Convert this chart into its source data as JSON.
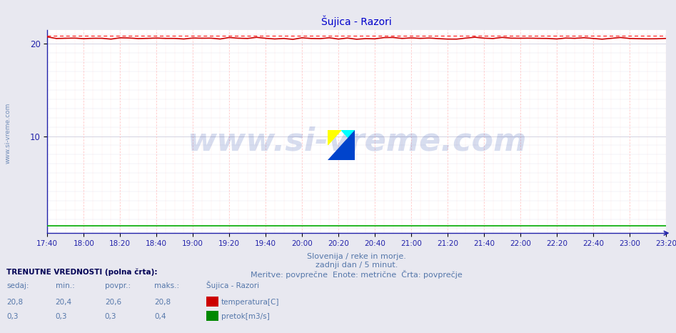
{
  "title": "Šujica - Razori",
  "title_color": "#0000cc",
  "title_fontsize": 10,
  "background_color": "#e8e8f0",
  "plot_bg_color": "#ffffff",
  "xlabel_line1": "Slovenija / reke in morje.",
  "xlabel_line2": "zadnji dan / 5 minut.",
  "xlabel_line3": "Meritve: povprečne  Enote: metrične  Črta: povprečje",
  "xlabel_color": "#5577aa",
  "xlabel_fontsize": 8,
  "xtick_labels": [
    "17:40",
    "18:00",
    "18:20",
    "18:40",
    "19:00",
    "19:20",
    "19:40",
    "20:00",
    "20:20",
    "20:40",
    "21:00",
    "21:20",
    "21:40",
    "22:00",
    "22:20",
    "22:40",
    "23:00",
    "23:20"
  ],
  "ytick_values": [
    10,
    20
  ],
  "ylim_min": -0.5,
  "ylim_max": 21.5,
  "grid_color": "#ccccdd",
  "vgrid_color": "#ffbbbb",
  "axis_color": "#2222aa",
  "temp_line_color": "#cc0000",
  "flow_line_color": "#00aa00",
  "avg_line_color": "#ff2222",
  "avg_line_value": 20.85,
  "temp_flat_value": 20.6,
  "flow_flat_value": 0.3,
  "watermark_text": "www.si-vreme.com",
  "watermark_color": "#2244aa",
  "watermark_alpha": 0.18,
  "watermark_fontsize": 32,
  "bottom_title": "TRENUTNE VREDNOSTI (polna črta):",
  "bottom_header": [
    "sedaj:",
    "min.:",
    "povpr.:",
    "maks.:",
    "Šujica - Razori"
  ],
  "bottom_row1": [
    "20,8",
    "20,4",
    "20,6",
    "20,8",
    "temperatura[C]"
  ],
  "bottom_row2": [
    "0,3",
    "0,3",
    "0,3",
    "0,4",
    "pretok[m3/s]"
  ],
  "temp_indicator_color": "#cc0000",
  "flow_indicator_color": "#008800",
  "sidebar_text": "www.si-vreme.com",
  "sidebar_color": "#5577aa",
  "sidebar_fontsize": 6.5
}
